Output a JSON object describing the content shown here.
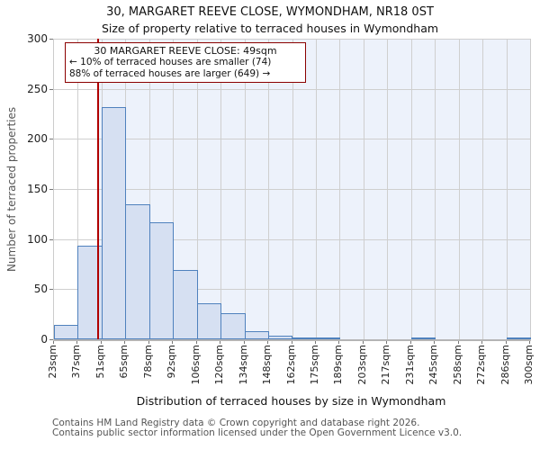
{
  "title": "30, MARGARET REEVE CLOSE, WYMONDHAM, NR18 0ST",
  "subtitle": "Size of property relative to terraced houses in Wymondham",
  "annotation": {
    "line1": "30 MARGARET REEVE CLOSE: 49sqm",
    "line2": "← 10% of terraced houses are smaller (74)",
    "line3": "88% of terraced houses are larger (649) →"
  },
  "footer": {
    "line1": "Contains HM Land Registry data © Crown copyright and database right 2026.",
    "line2": "Contains public sector information licensed under the Open Government Licence v3.0."
  },
  "chart_data": {
    "type": "bar",
    "title": "30, MARGARET REEVE CLOSE, WYMONDHAM, NR18 0ST",
    "subtitle": "Size of property relative to terraced houses in Wymondham",
    "xlabel": "Distribution of terraced houses by size in Wymondham",
    "ylabel": "Number of terraced properties",
    "bin_edges": [
      23,
      37,
      51,
      65,
      78,
      92,
      106,
      120,
      134,
      148,
      162,
      175,
      189,
      203,
      217,
      231,
      245,
      258,
      272,
      286,
      300
    ],
    "tick_labels": [
      "23sqm",
      "37sqm",
      "51sqm",
      "65sqm",
      "78sqm",
      "92sqm",
      "106sqm",
      "120sqm",
      "134sqm",
      "148sqm",
      "162sqm",
      "175sqm",
      "189sqm",
      "203sqm",
      "217sqm",
      "231sqm",
      "245sqm",
      "258sqm",
      "272sqm",
      "286sqm",
      "300sqm"
    ],
    "values": [
      14,
      93,
      232,
      135,
      117,
      69,
      36,
      26,
      8,
      4,
      2,
      2,
      0,
      0,
      0,
      2,
      0,
      0,
      0,
      2
    ],
    "ylim": [
      0,
      300
    ],
    "yticks": [
      0,
      50,
      100,
      150,
      200,
      250,
      300
    ],
    "grid": true,
    "legend": "none",
    "marker_value": 49,
    "marker_label": "49sqm",
    "smaller_count": 74,
    "smaller_pct": 10,
    "larger_count": 649,
    "larger_pct": 88,
    "colors": {
      "bar_fill": "#d6e0f2",
      "bar_edge": "#4f81bd",
      "marker_line": "#b00000",
      "annotation_border": "#8b0000",
      "larger_region_bg": "#edf2fb",
      "gridline": "#cfcfcf"
    }
  }
}
